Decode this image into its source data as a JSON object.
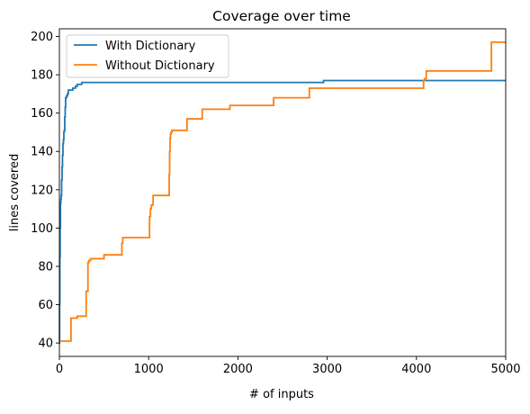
{
  "chart_data": {
    "type": "line",
    "title": "Coverage over time",
    "xlabel": "# of inputs",
    "ylabel": "lines covered",
    "xlim": [
      0,
      5000
    ],
    "ylim": [
      33,
      204
    ],
    "xticks": [
      0,
      1000,
      2000,
      3000,
      4000,
      5000
    ],
    "yticks": [
      40,
      60,
      80,
      100,
      120,
      140,
      160,
      180,
      200
    ],
    "grid": false,
    "legend_position": "top-left",
    "step": true,
    "series": [
      {
        "name": "With Dictionary",
        "color": "#1f77b4",
        "x": [
          0,
          2,
          5,
          8,
          12,
          16,
          20,
          25,
          30,
          35,
          40,
          45,
          50,
          55,
          60,
          65,
          70,
          80,
          90,
          100,
          110,
          130,
          150,
          180,
          200,
          220,
          250,
          300,
          500,
          1000,
          2000,
          2950,
          2960,
          3500,
          4000,
          5000
        ],
        "y": [
          40,
          60,
          85,
          100,
          113,
          115,
          117,
          125,
          132,
          138,
          144,
          146,
          150,
          151,
          158,
          163,
          168,
          169,
          170,
          172,
          172,
          172,
          173,
          174,
          175,
          175,
          176,
          176,
          176,
          176,
          176,
          176,
          177,
          177,
          177,
          177
        ]
      },
      {
        "name": "Without Dictionary",
        "color": "#ff7f0e",
        "x": [
          0,
          130,
          150,
          200,
          300,
          310,
          320,
          330,
          340,
          350,
          370,
          500,
          690,
          700,
          710,
          1010,
          1020,
          1030,
          1050,
          1230,
          1235,
          1240,
          1245,
          1250,
          1260,
          1430,
          1600,
          1900,
          1910,
          2400,
          2790,
          2800,
          4080,
          4090,
          4110,
          4120,
          4830,
          4840,
          5000
        ],
        "y": [
          41,
          53,
          53,
          54,
          67,
          67,
          82,
          83,
          83,
          84,
          84,
          86,
          86,
          92,
          95,
          106,
          110,
          112,
          117,
          128,
          140,
          147,
          149,
          150,
          151,
          157,
          162,
          162,
          164,
          168,
          168,
          173,
          177,
          178,
          182,
          182,
          182,
          197,
          197
        ]
      }
    ]
  }
}
